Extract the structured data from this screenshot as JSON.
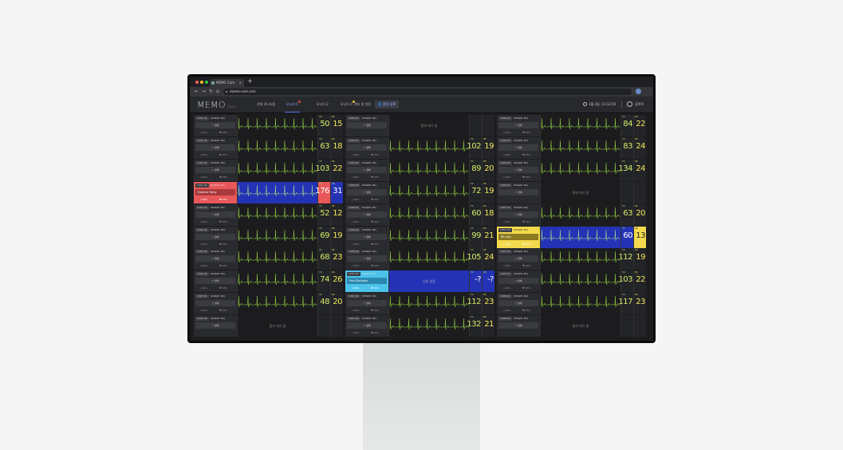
{
  "browser": {
    "tab_title": "MEMO Care",
    "tab_close": "×",
    "new_tab": "+",
    "url": "memo-care.com",
    "nav": [
      "←",
      "→",
      "↻",
      "⌂"
    ]
  },
  "app": {
    "logo": "MEMO",
    "logo_sub": "Care",
    "tabs": [
      {
        "label": "전체 모니터링"
      },
      {
        "label": "모니터 1",
        "active": true,
        "dot": "#e04848"
      },
      {
        "label": "모니터 2"
      },
      {
        "label": "모니터 3",
        "dot": "#e8c531"
      },
      {
        "label": "센터 및 설정"
      }
    ],
    "register_button": "환자 등록",
    "datetime": "1월 3일, 13:12:54",
    "user": "김목직"
  },
  "colors": {
    "wave": "#8cc63f",
    "hr": "#d4ec6a",
    "rr": "#f3e65c",
    "alert_red": "#e8585a",
    "alert_blue": "#2433b5",
    "alert_cyan": "#4cc3ea",
    "alert_yellow": "#f2d94e"
  },
  "labels": {
    "button": "생체",
    "waiting": "환자 대기 중",
    "hr": "HR",
    "rr": "RR",
    "battery": "99%",
    "heart": "95%"
  },
  "columns": [
    {
      "cells": [
        {
          "room": "1301-01",
          "name": "OOO(M, 60)",
          "hr": "50",
          "rr": "15"
        },
        {
          "room": "1301-02",
          "name": "OOO(M, 60)",
          "hr": "63",
          "rr": "18"
        },
        {
          "room": "1301-03",
          "name": "OOO(M, 60)",
          "hr": "103",
          "rr": "22"
        },
        {
          "room": "1301-04",
          "name": "OOO(M, 60)",
          "hr": "176",
          "rr": "31",
          "alert": "red",
          "message": "Extreme Tachy"
        },
        {
          "room": "1302-01",
          "name": "OOO(M, 60)",
          "hr": "52",
          "rr": "12"
        },
        {
          "room": "1302-02",
          "name": "OOO(M, 60)",
          "hr": "69",
          "rr": "19"
        },
        {
          "room": "1302-03",
          "name": "OOO(M, 60)",
          "hr": "68",
          "rr": "23"
        },
        {
          "room": "1302-04",
          "name": "OOO(M, 60)",
          "hr": "74",
          "rr": "26"
        },
        {
          "room": "1303-01",
          "name": "OOO(M, 60)",
          "hr": "48",
          "rr": "20"
        },
        {
          "room": "1303-02",
          "name": "OOO(M, 60)",
          "waiting": true
        }
      ]
    },
    {
      "cells": [
        {
          "room": "1306-00",
          "name": "OOO(M, 60)",
          "waiting": true
        },
        {
          "room": "1306-01",
          "name": "OOO(M, 60)",
          "hr": "102",
          "rr": "19"
        },
        {
          "room": "1306-02",
          "name": "OOO(M, 60)",
          "hr": "89",
          "rr": "20"
        },
        {
          "room": "1306-03",
          "name": "OOO(M, 60)",
          "hr": "72",
          "rr": "19"
        },
        {
          "room": "1306-04",
          "name": "OOO(M, 60)",
          "hr": "60",
          "rr": "18"
        },
        {
          "room": "1306-05",
          "name": "OOO(M, 60)",
          "hr": "99",
          "rr": "21"
        },
        {
          "room": "1306-06",
          "name": "OOO(M, 60)",
          "hr": "105",
          "rr": "24"
        },
        {
          "room": "1307-01",
          "name": "OOO(M, 60)",
          "hr": "-?",
          "rr": "-?",
          "alert": "cyan",
          "message": "Poor Electrode",
          "no_signal": "신호 없음"
        },
        {
          "room": "1307-02",
          "name": "OOO(M, 60)",
          "hr": "112",
          "rr": "23"
        },
        {
          "room": "1307-03",
          "name": "OOO(M, 60)",
          "hr": "132",
          "rr": "21"
        }
      ]
    },
    {
      "cells": [
        {
          "room": "1306-01",
          "name": "OOO(M, 60)",
          "hr": "84",
          "rr": "22"
        },
        {
          "room": "1306-02",
          "name": "OOO(M, 60)",
          "hr": "83",
          "rr": "24"
        },
        {
          "room": "1306-03",
          "name": "OOO(M, 60)",
          "hr": "134",
          "rr": "24"
        },
        {
          "room": "1306-04",
          "name": "OOO(M, 60)",
          "waiting": true
        },
        {
          "room": "1307-01",
          "name": "OOO(M, 60)",
          "hr": "63",
          "rr": "20"
        },
        {
          "room": "1307-02",
          "name": "OOO(M, 60)",
          "hr": "60",
          "rr": "13",
          "alert": "yellow",
          "message": "RR High"
        },
        {
          "room": "1307-03",
          "name": "OOO(M, 60)",
          "hr": "112",
          "rr": "19"
        },
        {
          "room": "1307-04",
          "name": "OOO(M, 60)",
          "hr": "103",
          "rr": "22"
        },
        {
          "room": "1308-01",
          "name": "OOO(M, 60)",
          "hr": "117",
          "rr": "23"
        },
        {
          "room": "1308-02",
          "name": "OOO(M, 60)",
          "waiting": true
        }
      ]
    }
  ]
}
